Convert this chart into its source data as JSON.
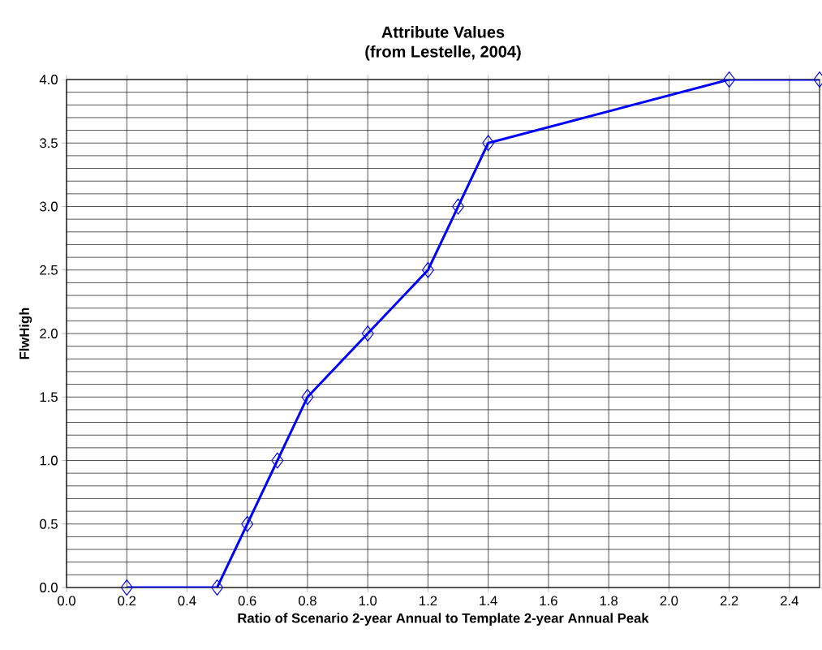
{
  "chart_data": {
    "type": "line",
    "title": "Attribute Values\n(from Lestelle, 2004)",
    "xlabel": "Ratio of Scenario 2-year Annual to Template 2-year Annual Peak",
    "ylabel": "FlwHigh",
    "x": [
      0.2,
      0.5,
      0.6,
      0.7,
      0.8,
      1.0,
      1.2,
      1.3,
      1.4,
      2.2,
      2.5
    ],
    "series": [
      {
        "color": "#0000ff",
        "values": [
          0,
          0,
          0.5,
          1.0,
          1.5,
          2.0,
          2.5,
          3.0,
          3.5,
          4.0,
          4.0
        ]
      }
    ],
    "xlim": [
      0,
      2.5
    ],
    "xticks": [
      {
        "value": 0,
        "label": "0.0"
      },
      0.2,
      0.4,
      0.6,
      0.8,
      {
        "value": 1,
        "label": "1.0"
      },
      1.2,
      1.4,
      1.6,
      1.8,
      {
        "value": 2,
        "label": "2.0"
      },
      2.2,
      2.4
    ],
    "ylim": [
      0,
      4
    ],
    "yticks": [
      {
        "value": 0,
        "label": "0.0"
      },
      0.5,
      {
        "value": 1,
        "label": "1.0"
      },
      1.5,
      {
        "value": 2,
        "label": "2.0"
      },
      2.5,
      {
        "value": 3,
        "label": "3.0"
      },
      3.5,
      {
        "value": 4,
        "label": "4.0"
      }
    ],
    "grid": true,
    "marker": "diamond",
    "line_style": "solid"
  }
}
